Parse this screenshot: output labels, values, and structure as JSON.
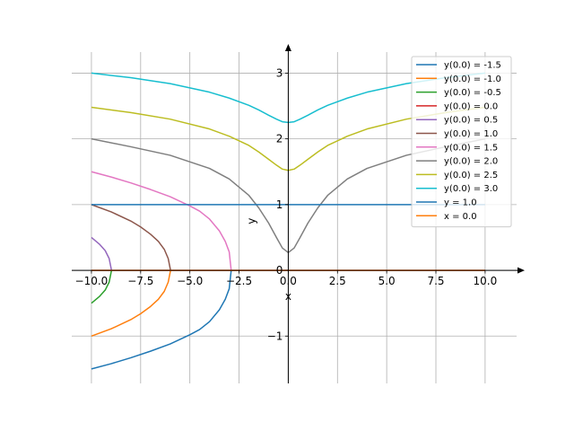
{
  "chart_data": {
    "type": "line",
    "title": "",
    "xlabel": "x",
    "ylabel": "y",
    "xlim": [
      -11.0,
      11.6
    ],
    "ylim": [
      -1.72,
      3.32
    ],
    "grid": true,
    "legend_position": "top-right",
    "x_ticks": [
      -10.0,
      -7.5,
      -5.0,
      -2.5,
      0.0,
      2.5,
      5.0,
      7.5,
      10.0
    ],
    "x_tick_labels": [
      "−10.0",
      "−7.5",
      "−5.0",
      "−2.5",
      "0.0",
      "2.5",
      "5.0",
      "7.5",
      "10.0"
    ],
    "y_ticks": [
      -1,
      0,
      1,
      2,
      3
    ],
    "y_tick_labels": [
      "−1",
      "0",
      "1",
      "2",
      "3"
    ],
    "series": [
      {
        "name": "y(0.0) = -1.5",
        "color": "#1f77b4",
        "x": [
          -10.0,
          -9.0,
          -8.0,
          -7.0,
          -6.0,
          -5.0,
          -4.5,
          -4.0,
          -3.5,
          -3.2,
          -3.0,
          -2.9
        ],
        "y": [
          -1.5,
          -1.42,
          -1.33,
          -1.23,
          -1.12,
          -0.98,
          -0.9,
          -0.78,
          -0.6,
          -0.44,
          -0.28,
          0.0
        ]
      },
      {
        "name": "y(0.0) = -1.0",
        "color": "#ff7f0e",
        "x": [
          -10.0,
          -9.0,
          -8.0,
          -7.5,
          -7.0,
          -6.6,
          -6.3,
          -6.1,
          -5.98
        ],
        "y": [
          -1.0,
          -0.89,
          -0.75,
          -0.66,
          -0.55,
          -0.44,
          -0.32,
          -0.18,
          0.0
        ]
      },
      {
        "name": "y(0.0) = -0.5",
        "color": "#2ca02c",
        "x": [
          -10.0,
          -9.6,
          -9.3,
          -9.1,
          -8.98
        ],
        "y": [
          -0.5,
          -0.4,
          -0.3,
          -0.18,
          0.0
        ]
      },
      {
        "name": "y(0.0) = 0.0",
        "color": "#d62728",
        "x": [
          -10.0,
          10.0
        ],
        "y": [
          0.0,
          0.0
        ]
      },
      {
        "name": "y(0.0) = 0.5",
        "color": "#9467bd",
        "x": [
          -10.0,
          -9.6,
          -9.3,
          -9.1,
          -8.98
        ],
        "y": [
          0.5,
          0.4,
          0.3,
          0.18,
          0.0
        ]
      },
      {
        "name": "y(0.0) = 1.0",
        "color": "#8c564b",
        "x": [
          -10.0,
          -9.0,
          -8.0,
          -7.5,
          -7.0,
          -6.6,
          -6.3,
          -6.1,
          -5.98
        ],
        "y": [
          1.0,
          0.89,
          0.75,
          0.66,
          0.55,
          0.44,
          0.32,
          0.18,
          0.0
        ]
      },
      {
        "name": "y(0.0) = 1.5",
        "color": "#e377c2",
        "x": [
          -10.0,
          -9.0,
          -8.0,
          -7.0,
          -6.0,
          -5.0,
          -4.5,
          -4.0,
          -3.5,
          -3.2,
          -3.0,
          -2.9
        ],
        "y": [
          1.5,
          1.42,
          1.33,
          1.23,
          1.12,
          0.98,
          0.9,
          0.78,
          0.6,
          0.44,
          0.28,
          0.0
        ]
      },
      {
        "name": "y(0.0) = 2.0",
        "color": "#7f7f7f",
        "x": [
          -10.0,
          -8.0,
          -6.0,
          -4.0,
          -3.0,
          -2.0,
          -1.5,
          -1.0,
          -0.6,
          -0.3,
          0.0,
          0.3,
          0.6,
          1.0,
          1.5,
          2.0,
          3.0,
          4.0,
          6.0,
          8.0,
          10.0
        ],
        "y": [
          2.0,
          1.88,
          1.75,
          1.55,
          1.39,
          1.14,
          0.95,
          0.72,
          0.5,
          0.34,
          0.27,
          0.34,
          0.5,
          0.72,
          0.95,
          1.14,
          1.39,
          1.55,
          1.75,
          1.88,
          2.0
        ]
      },
      {
        "name": "y(0.0) = 2.5",
        "color": "#bcbd22",
        "x": [
          -10.0,
          -8.0,
          -6.0,
          -4.0,
          -3.0,
          -2.0,
          -1.5,
          -1.0,
          -0.6,
          -0.3,
          0.0,
          0.3,
          0.6,
          1.0,
          1.5,
          2.0,
          3.0,
          4.0,
          6.0,
          8.0,
          10.0
        ],
        "y": [
          2.48,
          2.4,
          2.3,
          2.15,
          2.04,
          1.9,
          1.8,
          1.69,
          1.6,
          1.54,
          1.52,
          1.54,
          1.6,
          1.69,
          1.8,
          1.9,
          2.04,
          2.15,
          2.3,
          2.4,
          2.48
        ]
      },
      {
        "name": "y(0.0) = 3.0",
        "color": "#17becf",
        "x": [
          -10.0,
          -8.0,
          -6.0,
          -4.0,
          -3.0,
          -2.0,
          -1.5,
          -1.0,
          -0.6,
          -0.3,
          0.0,
          0.3,
          0.6,
          1.0,
          1.5,
          2.0,
          3.0,
          4.0,
          6.0,
          8.0,
          10.0
        ],
        "y": [
          3.0,
          2.93,
          2.84,
          2.71,
          2.62,
          2.51,
          2.44,
          2.36,
          2.3,
          2.26,
          2.25,
          2.26,
          2.3,
          2.36,
          2.44,
          2.51,
          2.62,
          2.71,
          2.84,
          2.93,
          3.0
        ]
      },
      {
        "name": "y = 1.0",
        "color": "#1f77b4",
        "x": [
          -10.0,
          10.0
        ],
        "y": [
          1.0,
          1.0
        ]
      },
      {
        "name": "x = 0.0",
        "color": "#ff7f0e",
        "x": [
          -10.0,
          10.0
        ],
        "y": [
          0.0,
          0.0
        ]
      }
    ]
  }
}
